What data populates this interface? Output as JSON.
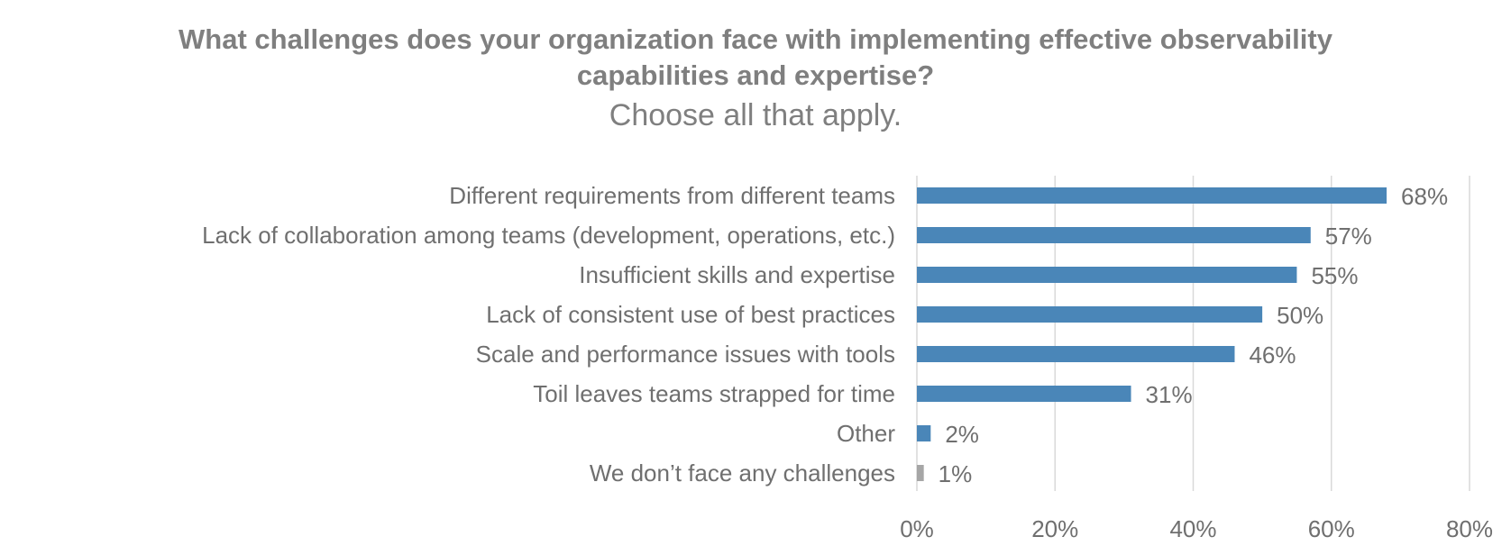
{
  "chart_data": {
    "type": "bar",
    "orientation": "horizontal",
    "title_lines": [
      "What challenges does your organization face with implementing effective observability",
      "capabilities and expertise?"
    ],
    "subtitle": "Choose all that apply.",
    "categories": [
      "Different requirements from different teams",
      "Lack of collaboration among teams (development, operations, etc.)",
      "Insufficient skills and expertise",
      "Lack of consistent use of best practices",
      "Scale and performance issues with tools",
      "Toil leaves teams strapped for time",
      "Other",
      "We don’t face any challenges"
    ],
    "values": [
      68,
      57,
      55,
      50,
      46,
      31,
      2,
      1
    ],
    "value_labels": [
      "68%",
      "57%",
      "55%",
      "50%",
      "46%",
      "31%",
      "2%",
      "1%"
    ],
    "bar_colors": [
      "#4a86b8",
      "#4a86b8",
      "#4a86b8",
      "#4a86b8",
      "#4a86b8",
      "#4a86b8",
      "#4a86b8",
      "#a6a6a6"
    ],
    "xlim": [
      0,
      80
    ],
    "x_ticks": [
      0,
      20,
      40,
      60,
      80
    ],
    "x_tick_labels": [
      "0%",
      "20%",
      "40%",
      "60%",
      "80%"
    ],
    "grid": true,
    "grid_color": "#d9d9d9",
    "text_color": "#7f7f7f"
  }
}
